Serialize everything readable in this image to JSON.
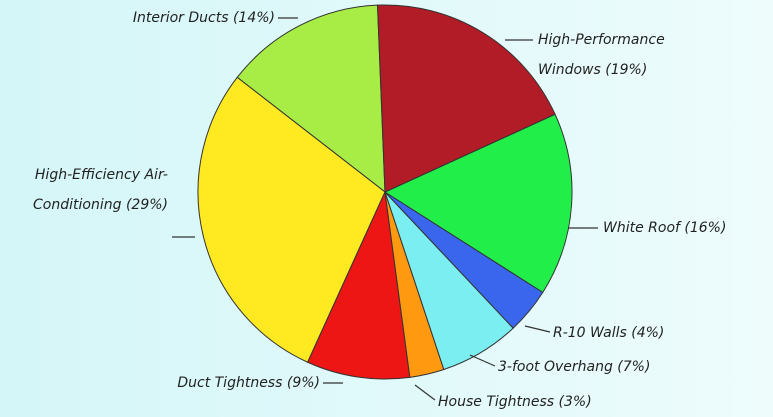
{
  "chart_data": {
    "type": "pie",
    "categories": [
      "High-Performance Windows",
      "White Roof",
      "R-10 Walls",
      "3-foot Overhang",
      "House Tightness",
      "Duct Tightness",
      "High-Efficiency Air-Conditioning",
      "Interior Ducts"
    ],
    "values": [
      19,
      16,
      4,
      7,
      3,
      9,
      29,
      14
    ],
    "value_labels": [
      "(19%)",
      "(16%)",
      "(4%)",
      "(7%)",
      "(3%)",
      "(9%)",
      "(29%)",
      "(14%)"
    ],
    "colors": [
      "#b21c26",
      "#22ee4a",
      "#3a66ee",
      "#7aeef0",
      "#ff9a10",
      "#ee1515",
      "#ffea22",
      "#a8ec46"
    ]
  }
}
